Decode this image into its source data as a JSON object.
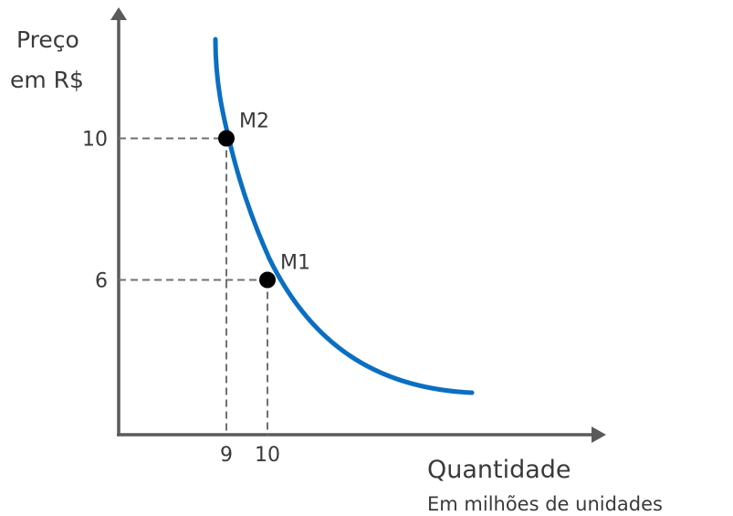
{
  "chart_data": {
    "type": "line",
    "ylabel": [
      "Preço",
      "em R$"
    ],
    "xlabel": "Quantidade",
    "xlabel_sub": "Em milhões de unidades",
    "x_ticks": [
      {
        "value": 9,
        "label": "9"
      },
      {
        "value": 10,
        "label": "10"
      }
    ],
    "y_ticks": [
      {
        "value": 6,
        "label": "6"
      },
      {
        "value": 10,
        "label": "10"
      }
    ],
    "points": [
      {
        "name": "M2",
        "x": 9,
        "y": 10
      },
      {
        "name": "M1",
        "x": 10,
        "y": 6
      }
    ],
    "curve": {
      "shape": "decreasing convex",
      "color": "#0a6fc2"
    },
    "grid": false,
    "guide_lines": "dashed"
  }
}
